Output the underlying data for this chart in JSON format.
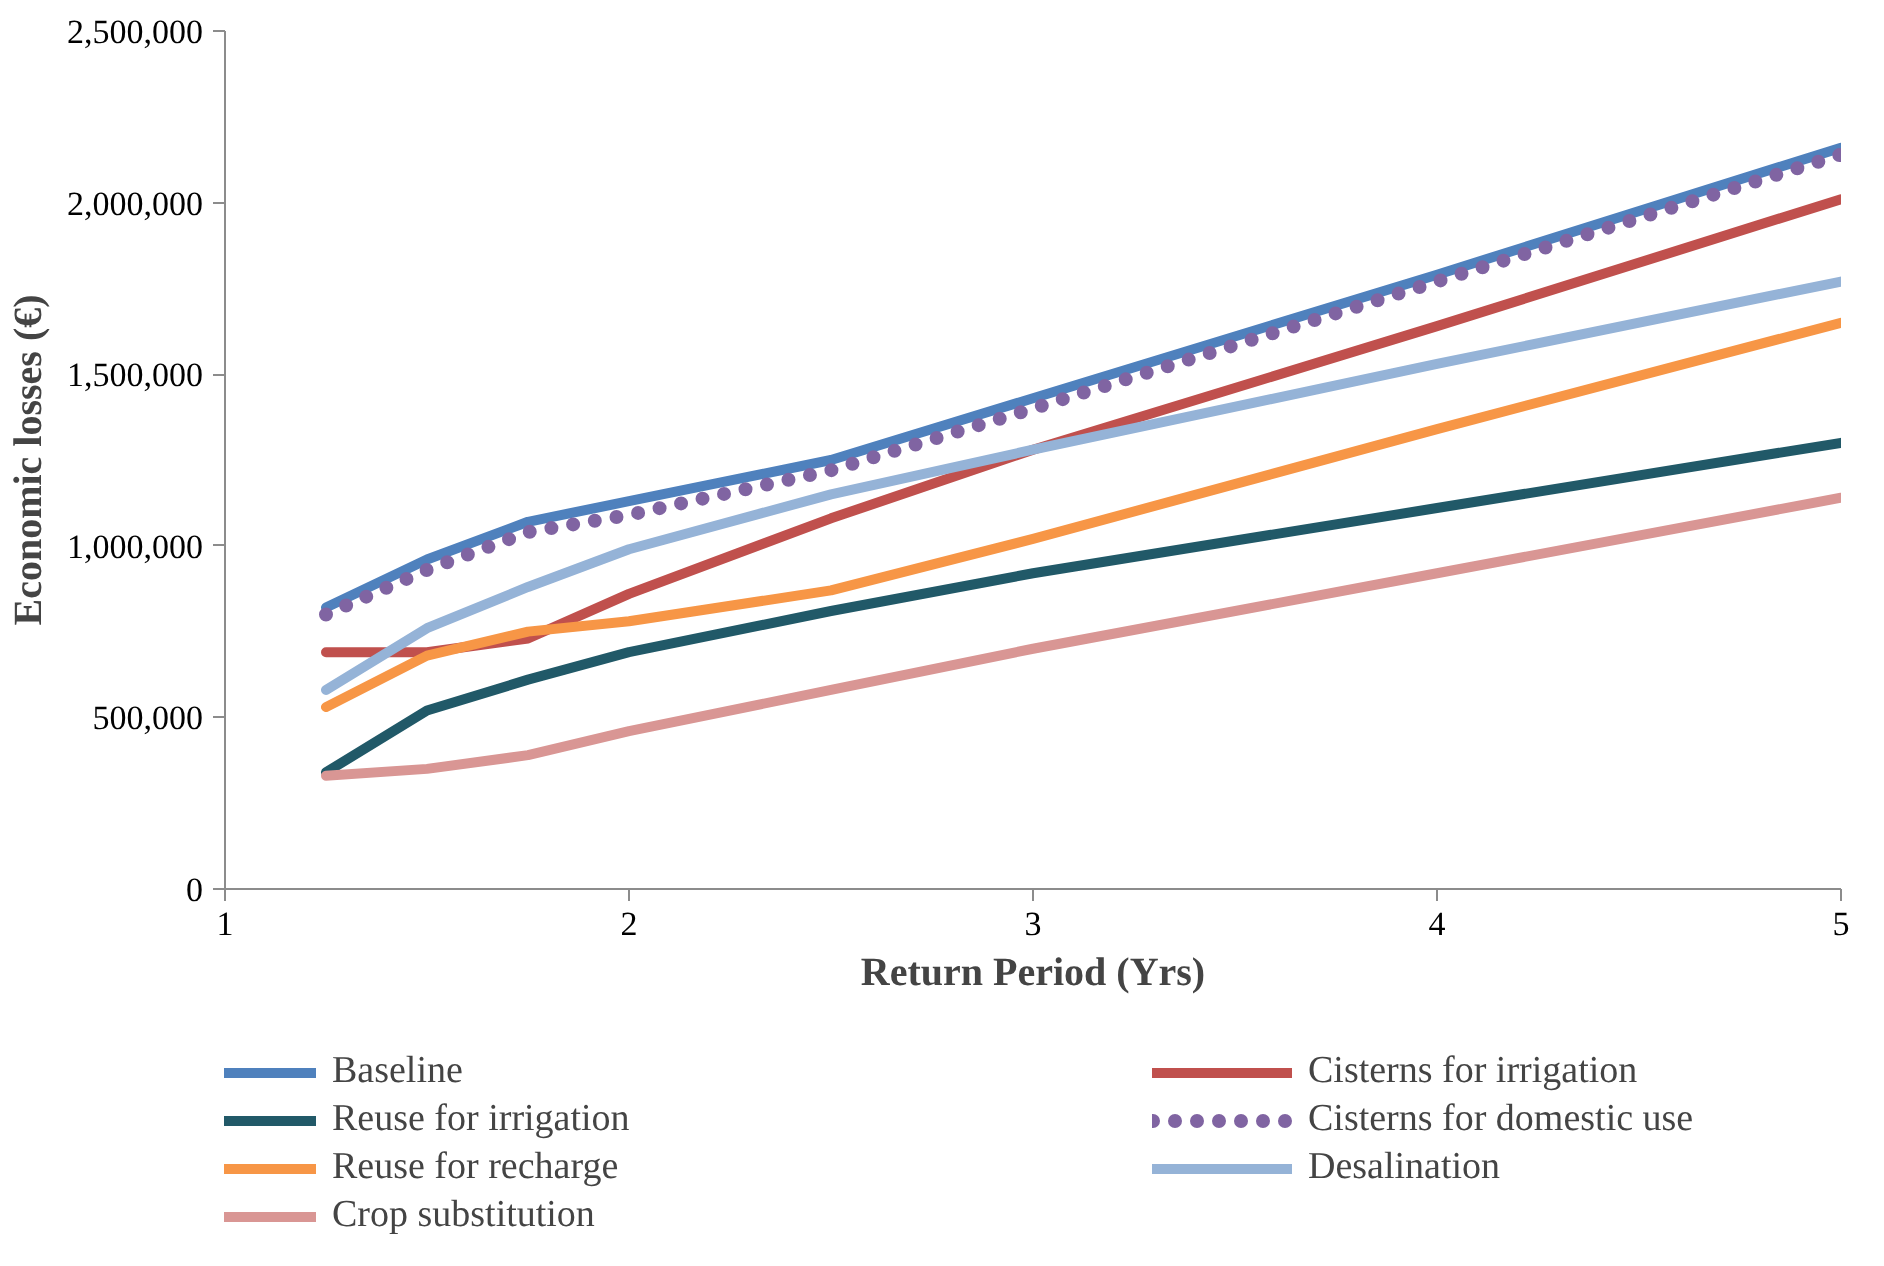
{
  "chart_data": {
    "type": "line",
    "xlabel": "Return Period (Yrs)",
    "ylabel": "Economic losses (€)",
    "x": [
      1.25,
      1.5,
      1.75,
      2,
      2.5,
      3,
      4,
      5
    ],
    "xlim": [
      1,
      5
    ],
    "xticks": [
      1,
      2,
      3,
      4,
      5
    ],
    "ylim": [
      0,
      2500000
    ],
    "yticks": [
      {
        "value": 0,
        "label": "0"
      },
      {
        "value": 500000,
        "label": "500,000"
      },
      {
        "value": 1000000,
        "label": "1,000,000"
      },
      {
        "value": 1500000,
        "label": "1,500,000"
      },
      {
        "value": 2000000,
        "label": "2,000,000"
      },
      {
        "value": 2500000,
        "label": "2,500,000"
      }
    ],
    "grid": false,
    "legend": "bottom",
    "marker": "none",
    "series": [
      {
        "name": "Baseline",
        "color": "#4f81bd",
        "line_style": "solid",
        "values": [
          820000,
          960000,
          1070000,
          1130000,
          1250000,
          1430000,
          1790000,
          2160000
        ]
      },
      {
        "name": "Cisterns for irrigation",
        "color": "#c0504d",
        "line_style": "solid",
        "values": [
          690000,
          690000,
          730000,
          860000,
          1080000,
          1280000,
          1640000,
          2010000
        ]
      },
      {
        "name": "Reuse for irrigation",
        "color": "#215968",
        "line_style": "solid",
        "values": [
          340000,
          520000,
          610000,
          690000,
          810000,
          920000,
          1110000,
          1300000
        ]
      },
      {
        "name": "Cisterns for domestic use",
        "color": "#8064a2",
        "line_style": "dotted",
        "values": [
          800000,
          930000,
          1040000,
          1090000,
          1220000,
          1400000,
          1770000,
          2140000
        ]
      },
      {
        "name": "Reuse for recharge",
        "color": "#f79646",
        "line_style": "solid",
        "values": [
          530000,
          680000,
          750000,
          780000,
          870000,
          1020000,
          1340000,
          1650000
        ]
      },
      {
        "name": "Desalination",
        "color": "#95b3d7",
        "line_style": "solid",
        "values": [
          580000,
          760000,
          880000,
          990000,
          1150000,
          1280000,
          1530000,
          1770000
        ]
      },
      {
        "name": "Crop substitution",
        "color": "#d99694",
        "line_style": "solid",
        "values": [
          330000,
          350000,
          390000,
          460000,
          580000,
          700000,
          920000,
          1140000
        ]
      }
    ]
  }
}
